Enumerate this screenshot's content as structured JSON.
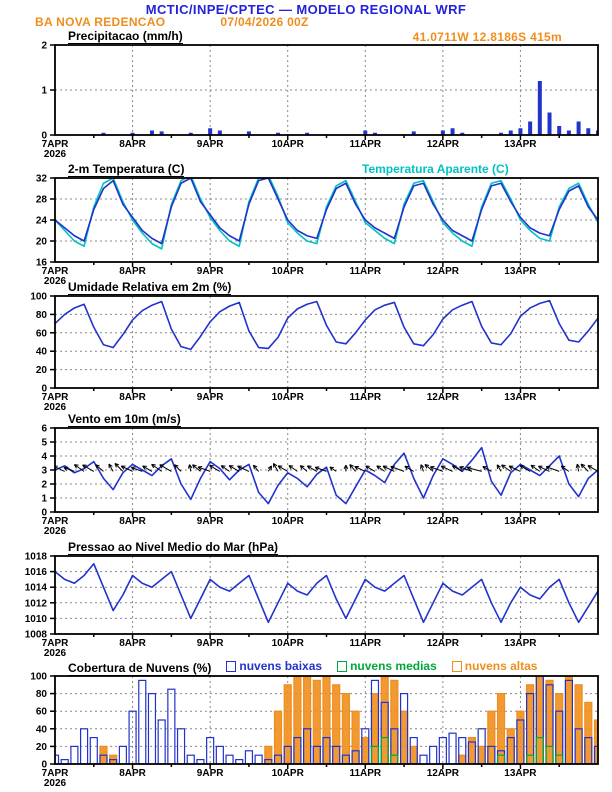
{
  "header": {
    "title": "MCTIC/INPE/CPTEC — MODELO REGIONAL WRF",
    "station": "BA NOVA REDENCAO",
    "run": "07/04/2026 00Z",
    "coordinates": "41.0711W 12.8186S 415m"
  },
  "colors": {
    "title_blue": "#2222dd",
    "orange": "#ef8e1d",
    "line_blue": "#2233cc",
    "cyan": "#00c2c2",
    "green": "#00a83c",
    "grid_gray": "#888888"
  },
  "chart_data": {
    "type": "meteogram",
    "x_hours": {
      "start": 0,
      "end": 168,
      "step": 3
    },
    "x_tick_hours": [
      0,
      24,
      48,
      72,
      96,
      120,
      144
    ],
    "x_tick_labels": [
      "7APR",
      "8APR",
      "9APR",
      "10APR",
      "11APR",
      "12APR",
      "13APR"
    ],
    "x_year_label": "2026",
    "panels": [
      {
        "id": "precipitation",
        "title": "Precipitacao (mm/h)",
        "type": "bar",
        "ylim": [
          0,
          2
        ],
        "yticks": [
          0,
          1,
          2
        ],
        "series": [
          {
            "name": "precipitacao",
            "color": "#2233cc",
            "values": [
              0,
              0,
              0,
              0,
              0,
              0.05,
              0,
              0,
              0.05,
              0,
              0.1,
              0.08,
              0,
              0,
              0.05,
              0,
              0.15,
              0.1,
              0,
              0,
              0.08,
              0,
              0,
              0.05,
              0,
              0,
              0.05,
              0,
              0,
              0,
              0,
              0,
              0.1,
              0.05,
              0,
              0,
              0,
              0.08,
              0,
              0,
              0.1,
              0.15,
              0.05,
              0,
              0,
              0,
              0.05,
              0.1,
              0.15,
              0.3,
              1.2,
              0.5,
              0.2,
              0.1,
              0.3,
              0.15,
              0.1
            ]
          }
        ]
      },
      {
        "id": "temperature",
        "title": "2-m Temperatura (C)",
        "extra_label": "Temperatura Aparente (C)",
        "type": "line",
        "ylim": [
          16,
          32
        ],
        "yticks": [
          16,
          20,
          24,
          28,
          32
        ],
        "series": [
          {
            "name": "temperatura aparente",
            "color": "#00c2c2",
            "values": [
              24,
              22,
              20,
              19,
              26.5,
              31,
              32,
              27.5,
              24,
              21.5,
              19.5,
              18.5,
              27,
              31.5,
              32.5,
              28,
              24.5,
              22,
              20,
              19,
              27.5,
              32,
              32.5,
              28.5,
              23.5,
              21.5,
              20,
              19.5,
              26.5,
              30.5,
              31.5,
              27.5,
              23.5,
              22,
              20.5,
              19.5,
              27,
              31,
              31.5,
              27.5,
              23.5,
              21.5,
              20,
              19,
              26.5,
              31,
              31.5,
              28,
              24,
              22,
              20.5,
              20,
              26.5,
              30,
              31,
              27,
              23.5
            ]
          },
          {
            "name": "temperatura 2m",
            "color": "#2233cc",
            "values": [
              24,
              22.5,
              21,
              20,
              26,
              30,
              31.5,
              27,
              24.5,
              22,
              20.5,
              19.5,
              26.5,
              31,
              32,
              27.5,
              25,
              22.5,
              21,
              20,
              27,
              31.5,
              32,
              28,
              24,
              22,
              21,
              20.5,
              26,
              30,
              31,
              27,
              24,
              22.5,
              21.5,
              20.5,
              26.5,
              30.5,
              31,
              27,
              24,
              22,
              21,
              20,
              26,
              30.5,
              31,
              27.5,
              24.5,
              22.5,
              21.5,
              21,
              26,
              29.5,
              30.5,
              26.5,
              24
            ]
          }
        ]
      },
      {
        "id": "humidity",
        "title": "Umidade Relativa em 2m (%)",
        "type": "line",
        "ylim": [
          0,
          100
        ],
        "yticks": [
          0,
          20,
          40,
          60,
          80,
          100
        ],
        "series": [
          {
            "name": "umidade relativa",
            "color": "#2233cc",
            "values": [
              70,
              80,
              87,
              91,
              66,
              47,
              44,
              58,
              74,
              84,
              90,
              94,
              64,
              45,
              42,
              56,
              72,
              83,
              89,
              93,
              62,
              44,
              43,
              55,
              76,
              86,
              91,
              94,
              68,
              50,
              48,
              60,
              74,
              85,
              90,
              93,
              66,
              48,
              46,
              58,
              75,
              85,
              90,
              94,
              67,
              49,
              47,
              59,
              78,
              87,
              92,
              95,
              70,
              52,
              50,
              62,
              76
            ]
          }
        ]
      },
      {
        "id": "wind",
        "title": "Vento em 10m (m/s)",
        "type": "line",
        "ylim": [
          0,
          6
        ],
        "yticks": [
          0,
          1,
          2,
          3,
          4,
          5,
          6
        ],
        "arrows": {
          "anchor": 2.9,
          "dir_deg": [
            150,
            155,
            160,
            145,
            150,
            140,
            120,
            135,
            155,
            160,
            150,
            145,
            150,
            135,
            100,
            140,
            160,
            150,
            145,
            150,
            155,
            130,
            60,
            120,
            150,
            145,
            140,
            150,
            160,
            145,
            90,
            130,
            155,
            150,
            145,
            155,
            160,
            150,
            110,
            140,
            160,
            155,
            150,
            160,
            165,
            150,
            120,
            145,
            155,
            150,
            145,
            155,
            160,
            145,
            100,
            135,
            150
          ]
        },
        "series": [
          {
            "name": "vento 10m",
            "color": "#2233cc",
            "values": [
              3,
              3.3,
              2.8,
              3.1,
              3.6,
              2.4,
              1.6,
              2.8,
              3.4,
              3,
              2.6,
              3.3,
              3.8,
              2,
              0.9,
              2.4,
              3.6,
              3.1,
              2.3,
              3,
              3.4,
              1.4,
              0.6,
              1.9,
              2.8,
              2.4,
              1.8,
              2.7,
              3.2,
              1.2,
              0.6,
              1.8,
              3,
              2.6,
              2.1,
              3.4,
              4.2,
              2.4,
              1,
              2.6,
              3.8,
              3.4,
              2.9,
              3.7,
              4.6,
              2.2,
              1.2,
              2.8,
              3.4,
              3,
              2.6,
              3.3,
              4,
              2,
              1.1,
              2.4,
              3
            ]
          }
        ]
      },
      {
        "id": "pressure",
        "title": "Pressao ao Nivel Medio do Mar (hPa)",
        "type": "line",
        "ylim": [
          1008,
          1018
        ],
        "yticks": [
          1008,
          1010,
          1012,
          1014,
          1016,
          1018
        ],
        "series": [
          {
            "name": "pressao nivel medio mar",
            "color": "#2233cc",
            "values": [
              1016,
              1015,
              1014.5,
              1015.5,
              1017,
              1014,
              1011,
              1013,
              1015.5,
              1014.5,
              1014,
              1015,
              1016,
              1013,
              1010,
              1012.5,
              1015,
              1014,
              1013.5,
              1014.5,
              1015.5,
              1012.5,
              1009.5,
              1012,
              1014.5,
              1013.5,
              1013,
              1014.5,
              1015.5,
              1012.5,
              1010,
              1012.5,
              1015,
              1014,
              1013.5,
              1014.5,
              1015.5,
              1012.5,
              1009.5,
              1012,
              1014.5,
              1013.5,
              1013,
              1014,
              1015,
              1012,
              1009.5,
              1012,
              1014,
              1013,
              1012.5,
              1014,
              1015,
              1012,
              1009.5,
              1011.5,
              1013.5
            ]
          }
        ]
      },
      {
        "id": "clouds",
        "title": "Cobertura de Nuvens (%)",
        "type": "cloud-bars",
        "ylim": [
          0,
          100
        ],
        "yticks": [
          0,
          20,
          40,
          60,
          80,
          100
        ],
        "legend": [
          {
            "label": "nuvens baixas",
            "color": "#2233cc"
          },
          {
            "label": "nuvens medias",
            "color": "#00a83c"
          },
          {
            "label": "nuvens altas",
            "color": "#ef8e1d"
          }
        ],
        "series": [
          {
            "name": "nuvens altas",
            "color": "#ef8e1d",
            "fill": "solid",
            "values": [
              0,
              0,
              0,
              0,
              0,
              20,
              10,
              0,
              0,
              0,
              0,
              0,
              0,
              0,
              0,
              0,
              0,
              0,
              0,
              0,
              0,
              0,
              20,
              60,
              90,
              100,
              100,
              95,
              100,
              90,
              80,
              60,
              30,
              80,
              100,
              95,
              60,
              20,
              0,
              0,
              0,
              0,
              10,
              30,
              20,
              60,
              80,
              40,
              60,
              90,
              100,
              95,
              80,
              100,
              90,
              70,
              50
            ]
          },
          {
            "name": "nuvens baixas",
            "color": "#2233cc",
            "fill": "outline",
            "values": [
              10,
              5,
              20,
              40,
              30,
              10,
              5,
              20,
              60,
              95,
              80,
              50,
              85,
              40,
              10,
              5,
              30,
              20,
              10,
              5,
              15,
              10,
              5,
              10,
              20,
              30,
              40,
              20,
              30,
              20,
              10,
              15,
              40,
              95,
              70,
              40,
              80,
              30,
              10,
              20,
              30,
              35,
              30,
              25,
              40,
              20,
              15,
              30,
              50,
              80,
              100,
              90,
              60,
              95,
              40,
              30,
              20
            ]
          },
          {
            "name": "nuvens medias",
            "color": "#00a83c",
            "fill": "outline",
            "values": [
              0,
              0,
              0,
              0,
              0,
              0,
              0,
              0,
              0,
              0,
              0,
              0,
              0,
              0,
              0,
              0,
              0,
              0,
              0,
              0,
              0,
              0,
              0,
              0,
              0,
              0,
              0,
              0,
              0,
              0,
              0,
              0,
              0,
              20,
              30,
              10,
              0,
              0,
              0,
              0,
              0,
              0,
              0,
              0,
              0,
              0,
              10,
              0,
              0,
              10,
              30,
              20,
              10,
              0,
              0,
              0,
              0
            ]
          }
        ]
      }
    ]
  }
}
